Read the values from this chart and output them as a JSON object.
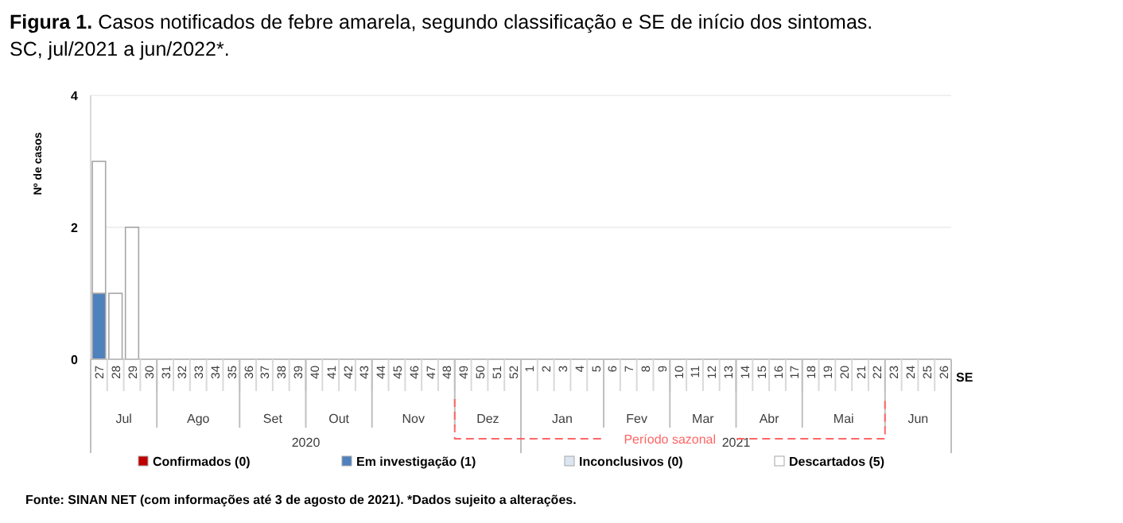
{
  "chart_data": {
    "type": "bar",
    "stacked": true,
    "title": "Figura 1. Casos notificados de febre amarela, segundo classificação e SE de início dos sintomas. SC, jul/2021 a jun/2022*.",
    "ylabel": "Nº de casos",
    "xlabel": "SE",
    "categories": [
      "27",
      "28",
      "29",
      "30",
      "31",
      "32",
      "33",
      "34",
      "35",
      "36",
      "37",
      "38",
      "39",
      "40",
      "41",
      "42",
      "43",
      "44",
      "45",
      "46",
      "47",
      "48",
      "49",
      "50",
      "51",
      "52",
      "1",
      "2",
      "3",
      "4",
      "5",
      "6",
      "7",
      "8",
      "9",
      "10",
      "11",
      "12",
      "13",
      "14",
      "15",
      "16",
      "17",
      "18",
      "19",
      "20",
      "21",
      "22",
      "23",
      "24",
      "25",
      "26"
    ],
    "series": [
      {
        "name": "Confirmados (0)",
        "color": "#c00000",
        "values": [
          0,
          0,
          0,
          0,
          0,
          0,
          0,
          0,
          0,
          0,
          0,
          0,
          0,
          0,
          0,
          0,
          0,
          0,
          0,
          0,
          0,
          0,
          0,
          0,
          0,
          0,
          0,
          0,
          0,
          0,
          0,
          0,
          0,
          0,
          0,
          0,
          0,
          0,
          0,
          0,
          0,
          0,
          0,
          0,
          0,
          0,
          0,
          0,
          0,
          0,
          0,
          0
        ]
      },
      {
        "name": "Em investigação (1)",
        "color": "#4f81bd",
        "values": [
          1,
          0,
          0,
          0,
          0,
          0,
          0,
          0,
          0,
          0,
          0,
          0,
          0,
          0,
          0,
          0,
          0,
          0,
          0,
          0,
          0,
          0,
          0,
          0,
          0,
          0,
          0,
          0,
          0,
          0,
          0,
          0,
          0,
          0,
          0,
          0,
          0,
          0,
          0,
          0,
          0,
          0,
          0,
          0,
          0,
          0,
          0,
          0,
          0,
          0,
          0,
          0
        ]
      },
      {
        "name": "Inconclusivos (0)",
        "color": "#dce6f2",
        "values": [
          0,
          0,
          0,
          0,
          0,
          0,
          0,
          0,
          0,
          0,
          0,
          0,
          0,
          0,
          0,
          0,
          0,
          0,
          0,
          0,
          0,
          0,
          0,
          0,
          0,
          0,
          0,
          0,
          0,
          0,
          0,
          0,
          0,
          0,
          0,
          0,
          0,
          0,
          0,
          0,
          0,
          0,
          0,
          0,
          0,
          0,
          0,
          0,
          0,
          0,
          0,
          0
        ]
      },
      {
        "name": "Descartados (5)",
        "color": "#ffffff",
        "values": [
          2,
          1,
          2,
          0,
          0,
          0,
          0,
          0,
          0,
          0,
          0,
          0,
          0,
          0,
          0,
          0,
          0,
          0,
          0,
          0,
          0,
          0,
          0,
          0,
          0,
          0,
          0,
          0,
          0,
          0,
          0,
          0,
          0,
          0,
          0,
          0,
          0,
          0,
          0,
          0,
          0,
          0,
          0,
          0,
          0,
          0,
          0,
          0,
          0,
          0,
          0,
          0
        ]
      }
    ],
    "ylim": [
      0,
      4
    ],
    "yticks": [
      0,
      2,
      4
    ],
    "grid": "y",
    "legend": "bottom",
    "annotations": [
      "Jul",
      "Ago",
      "Set",
      "Out",
      "Nov",
      "Dez",
      "Jan",
      "Fev",
      "Mar",
      "Abr",
      "Mai",
      "Jun",
      "2020",
      "2021",
      "Período sazonal",
      "Fonte: SINAN NET (com informações até 3 de agosto de 2021). *Dados sujeito a alterações."
    ]
  }
}
